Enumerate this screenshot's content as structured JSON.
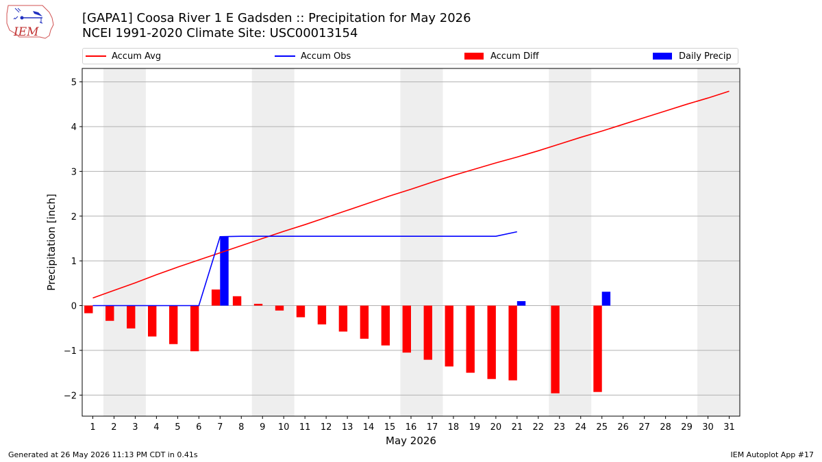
{
  "header": {
    "title_line1": "[GAPA1] Coosa River 1 E Gadsden :: Precipitation for May 2026",
    "title_line2": "NCEI 1991-2020 Climate Site: USC00013154",
    "logo_text": "IEM"
  },
  "legend": {
    "accum_avg": "Accum Avg",
    "accum_obs": "Accum Obs",
    "accum_diff": "Accum Diff",
    "daily_precip": "Daily Precip"
  },
  "colors": {
    "accum_avg": "#ff0000",
    "accum_obs": "#0000ff",
    "accum_diff": "#ff0000",
    "daily_precip": "#0000ff",
    "weekend_shade": "#eeeeee",
    "grid": "#b0b0b0"
  },
  "chart_data": {
    "type": "bar",
    "xlabel": "May 2026",
    "ylabel": "Precipitation [inch]",
    "xlim": [
      0.5,
      31.5
    ],
    "ylim": [
      -2.47,
      5.3
    ],
    "yticks": [
      -2,
      -1,
      0,
      1,
      2,
      3,
      4,
      5
    ],
    "ytick_labels": [
      "−2",
      "−1",
      "0",
      "1",
      "2",
      "3",
      "4",
      "5"
    ],
    "grid": "horizontal",
    "legend_position": "top",
    "days": [
      1,
      2,
      3,
      4,
      5,
      6,
      7,
      8,
      9,
      10,
      11,
      12,
      13,
      14,
      15,
      16,
      17,
      18,
      19,
      20,
      21,
      22,
      23,
      24,
      25,
      26,
      27,
      28,
      29,
      30,
      31
    ],
    "day_labels": [
      "1",
      "2",
      "3",
      "4",
      "5",
      "6",
      "7",
      "8",
      "9",
      "10",
      "11",
      "12",
      "13",
      "14",
      "15",
      "16",
      "17",
      "18",
      "19",
      "20",
      "21",
      "22",
      "23",
      "24",
      "25",
      "26",
      "27",
      "28",
      "29",
      "30",
      "31"
    ],
    "weekend_shading": [
      [
        1.5,
        3.5
      ],
      [
        8.5,
        10.5
      ],
      [
        15.5,
        17.5
      ],
      [
        22.5,
        24.5
      ],
      [
        29.5,
        31.5
      ]
    ],
    "series": [
      {
        "name": "Accum Avg",
        "type": "line",
        "values": [
          0.17,
          0.34,
          0.51,
          0.69,
          0.86,
          1.02,
          1.18,
          1.34,
          1.5,
          1.66,
          1.81,
          1.97,
          2.13,
          2.29,
          2.45,
          2.6,
          2.76,
          2.91,
          3.05,
          3.19,
          3.32,
          3.46,
          3.61,
          3.76,
          3.9,
          4.05,
          4.2,
          4.35,
          4.5,
          4.64,
          4.79
        ]
      },
      {
        "name": "Accum Obs",
        "type": "line",
        "values": [
          0.0,
          0.0,
          0.0,
          0.0,
          0.0,
          0.0,
          1.54,
          1.55,
          1.55,
          1.55,
          1.55,
          1.55,
          1.55,
          1.55,
          1.55,
          1.55,
          1.55,
          1.55,
          1.55,
          1.55,
          1.65,
          null,
          null,
          null,
          null,
          null,
          null,
          null,
          null,
          null,
          null
        ]
      },
      {
        "name": "Accum Diff",
        "type": "bar",
        "values": [
          -0.17,
          -0.34,
          -0.51,
          -0.69,
          -0.86,
          -1.02,
          0.36,
          0.21,
          0.04,
          -0.11,
          -0.26,
          -0.42,
          -0.58,
          -0.74,
          -0.89,
          -1.05,
          -1.21,
          -1.36,
          -1.5,
          -1.64,
          -1.67,
          null,
          -1.96,
          null,
          -1.93,
          null,
          null,
          null,
          null,
          null,
          null
        ]
      },
      {
        "name": "Daily Precip",
        "type": "bar",
        "values": [
          0.0,
          0.0,
          0.0,
          0.0,
          0.0,
          0.0,
          1.54,
          0.0,
          0.0,
          0.0,
          0.0,
          0.0,
          0.0,
          0.0,
          0.0,
          0.0,
          0.0,
          0.0,
          0.0,
          0.0,
          0.1,
          null,
          null,
          null,
          0.31,
          null,
          null,
          null,
          null,
          null,
          null
        ]
      }
    ]
  },
  "footer": {
    "left": "Generated at 26 May 2026 11:13 PM CDT in 0.41s",
    "right": "IEM Autoplot App #17"
  }
}
